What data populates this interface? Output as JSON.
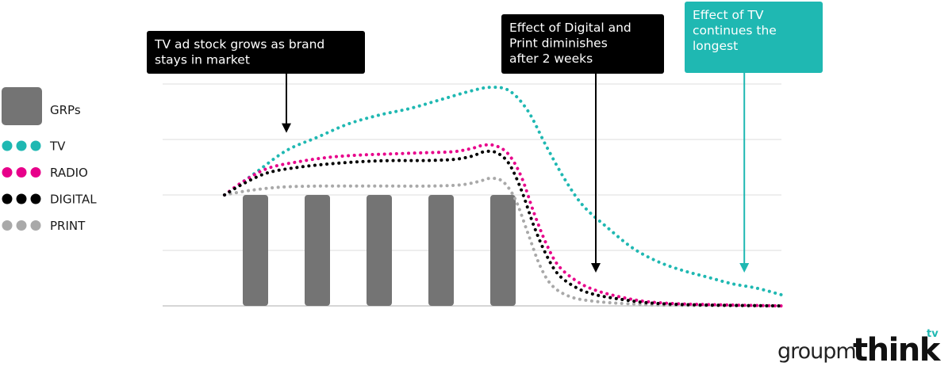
{
  "chart_data": {
    "type": "line",
    "title": "",
    "xlabel": "",
    "ylabel": "",
    "x_units": "week",
    "xlim": [
      0,
      10
    ],
    "ylim": [
      0,
      100
    ],
    "grid": true,
    "legend_position": "left",
    "bar_series": {
      "name": "GRPs",
      "color": "#747474",
      "x": [
        1.5,
        2.5,
        3.5,
        4.5,
        5.5
      ],
      "values": [
        50,
        50,
        50,
        50,
        50
      ]
    },
    "series": [
      {
        "name": "TV",
        "color": "#1fb8b2",
        "x": [
          1,
          1.5,
          2,
          2.5,
          3,
          3.5,
          4,
          4.5,
          5,
          5.3,
          5.6,
          5.9,
          6.2,
          6.5,
          6.8,
          7.2,
          7.6,
          8.0,
          8.4,
          8.8,
          9.2,
          9.6,
          10
        ],
        "values": [
          50,
          60,
          70,
          76,
          82,
          86,
          89,
          93,
          97,
          98.5,
          97,
          88,
          72,
          57,
          45,
          35,
          26,
          20,
          16,
          13,
          10,
          8,
          5
        ]
      },
      {
        "name": "RADIO",
        "color": "#e7008a",
        "x": [
          1,
          1.3,
          1.7,
          2.2,
          2.7,
          3.2,
          3.7,
          4.2,
          4.7,
          5.0,
          5.2,
          5.4,
          5.6,
          5.8,
          6.0,
          6.2,
          6.4,
          6.7,
          7.0,
          7.4,
          7.8,
          8.3,
          9,
          10
        ],
        "values": [
          50,
          56,
          62,
          65,
          67,
          68,
          68.5,
          69,
          69.5,
          71,
          72.5,
          72,
          68,
          58,
          42,
          28,
          18,
          11,
          7,
          4,
          2,
          1,
          0.5,
          0
        ]
      },
      {
        "name": "DIGITAL",
        "color": "#000000",
        "x": [
          1,
          1.3,
          1.7,
          2.2,
          2.7,
          3.2,
          3.7,
          4.2,
          4.7,
          5.0,
          5.2,
          5.4,
          5.6,
          5.8,
          6.0,
          6.2,
          6.4,
          6.7,
          7.0,
          7.4,
          7.8,
          8.3,
          9,
          10
        ],
        "values": [
          50,
          55,
          60,
          62.5,
          64,
          65,
          65.5,
          65.5,
          66,
          67.5,
          69.5,
          69,
          64,
          52,
          36,
          23,
          14,
          8,
          5,
          3,
          1.5,
          0.7,
          0.3,
          0
        ]
      },
      {
        "name": "PRINT",
        "color": "#a9a9a9",
        "x": [
          1,
          1.4,
          1.9,
          2.5,
          3.1,
          3.7,
          4.3,
          4.8,
          5.1,
          5.3,
          5.5,
          5.7,
          5.9,
          6.1,
          6.3,
          6.6,
          7.0,
          7.5,
          8.2,
          10
        ],
        "values": [
          50,
          52,
          53.5,
          54,
          54,
          54,
          54,
          54.5,
          56,
          57.5,
          56,
          48,
          33,
          18,
          9,
          4,
          2,
          1,
          0.3,
          0
        ]
      }
    ],
    "annotations": [
      {
        "id": "ad-stock",
        "lines": [
          "TV ad stock grows as brand",
          "stays in market"
        ],
        "style": "dark",
        "bg": "#000000",
        "text_color": "#ffffff",
        "arrow_x": 2.0,
        "arrow_y": 78
      },
      {
        "id": "digital-print",
        "lines": [
          "Effect of Digital and",
          "Print diminishes",
          "after 2 weeks"
        ],
        "style": "dark",
        "bg": "#000000",
        "text_color": "#ffffff",
        "arrow_x": 7.0,
        "arrow_y": 15
      },
      {
        "id": "tv-longest",
        "lines": [
          "Effect of TV",
          "continues the",
          "longest"
        ],
        "style": "teal",
        "bg": "#1fb8b2",
        "text_color": "#ffffff",
        "arrow_x": 9.4,
        "arrow_y": 15
      }
    ],
    "logos": {
      "groupm": "groupm",
      "think": "think",
      "tv": "tv"
    }
  }
}
